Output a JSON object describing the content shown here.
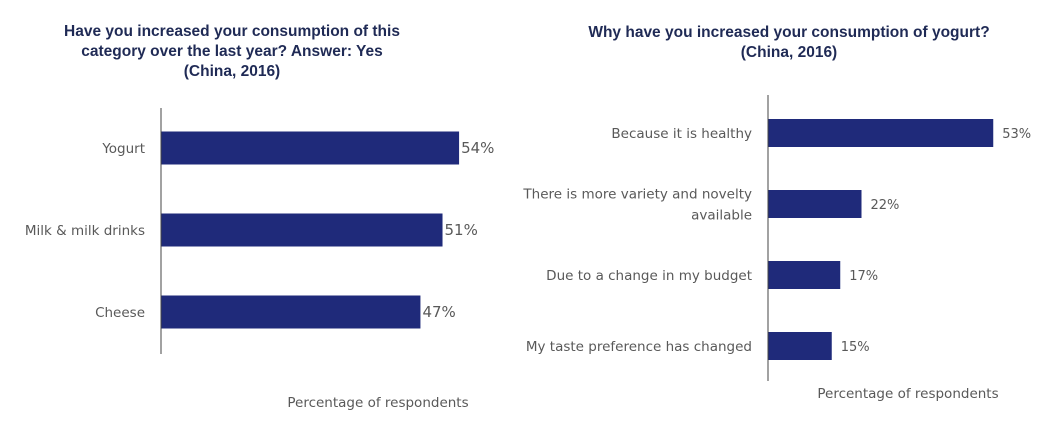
{
  "colors": {
    "bar": "#1f2a7a",
    "title": "#1f2a55",
    "text": "#595959",
    "axis": "#444444"
  },
  "chart_data": [
    {
      "type": "bar",
      "orientation": "horizontal",
      "title_lines": [
        "Have you increased your consumption of this",
        "category over the last year? Answer: Yes",
        "(China, 2016)"
      ],
      "categories": [
        "Yogurt",
        "Milk & milk drinks",
        "Cheese"
      ],
      "values": [
        54,
        51,
        47
      ],
      "value_labels": [
        "54%",
        "51%",
        "47%"
      ],
      "xlabel": "Percentage of respondents",
      "ylabel": "",
      "unit": "%"
    },
    {
      "type": "bar",
      "orientation": "horizontal",
      "title_lines": [
        "Why have you increased your consumption of yogurt?",
        "(China, 2016)"
      ],
      "categories": [
        [
          "Because it is healthy"
        ],
        [
          "There is more variety and novelty",
          "available"
        ],
        [
          "Due to a change in my budget"
        ],
        [
          "My taste preference has changed"
        ]
      ],
      "values": [
        53,
        22,
        17,
        15
      ],
      "value_labels": [
        "53%",
        "22%",
        "17%",
        "15%"
      ],
      "xlabel": "Percentage of respondents",
      "ylabel": "",
      "unit": "%"
    }
  ]
}
